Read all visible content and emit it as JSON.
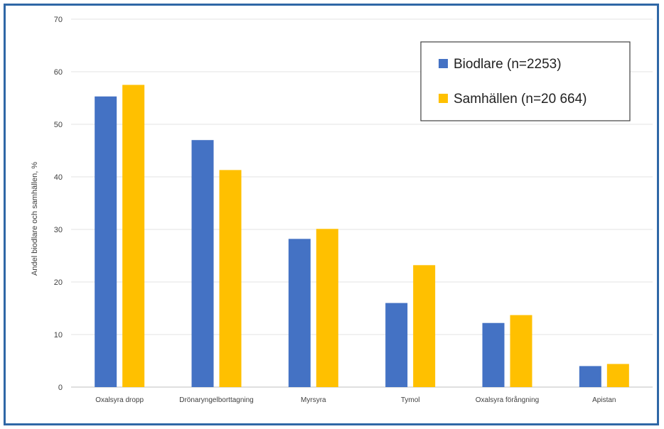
{
  "chart_data": {
    "type": "bar",
    "title": "",
    "xlabel": "",
    "ylabel": "Andel biodlare och samhällen, %",
    "ylim": [
      0,
      70
    ],
    "yticks": [
      0,
      10,
      20,
      30,
      40,
      50,
      60,
      70
    ],
    "grid": true,
    "legend_position": "top-right",
    "categories": [
      "Oxalsyra dropp",
      "Drönaryngelborttagning",
      "Myrsyra",
      "Tymol",
      "Oxalsyra förångning",
      "Apistan"
    ],
    "series": [
      {
        "name": "Biodlare (n=2253)",
        "color": "#4472c4",
        "values": [
          55.3,
          47.0,
          28.2,
          16.0,
          12.2,
          4.0
        ]
      },
      {
        "name": "Samhällen (n=20 664)",
        "color": "#ffc000",
        "values": [
          57.5,
          41.3,
          30.1,
          23.2,
          13.7,
          4.4
        ]
      }
    ]
  }
}
